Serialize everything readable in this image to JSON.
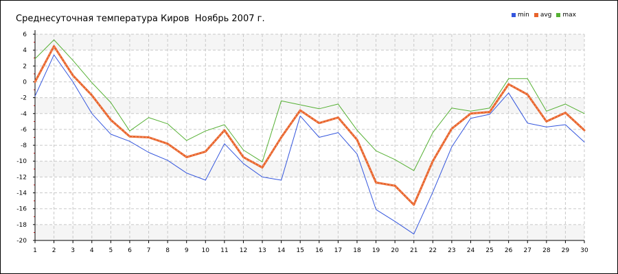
{
  "chart_data": {
    "type": "line",
    "title": "Среднесуточная температура Киров  Ноябрь 2007 г.",
    "xlabel": "",
    "ylabel": "",
    "xlim": [
      1,
      30
    ],
    "ylim": [
      -20,
      6
    ],
    "x": [
      1,
      2,
      3,
      4,
      5,
      6,
      7,
      8,
      9,
      10,
      11,
      12,
      13,
      14,
      15,
      16,
      17,
      18,
      19,
      20,
      21,
      22,
      23,
      24,
      25,
      26,
      27,
      28,
      29,
      30
    ],
    "x_ticks": [
      "1",
      "2",
      "3",
      "4",
      "5",
      "6",
      "7",
      "8",
      "9",
      "10",
      "11",
      "12",
      "13",
      "14",
      "15",
      "16",
      "17",
      "18",
      "19",
      "20",
      "21",
      "22",
      "23",
      "24",
      "25",
      "26",
      "27",
      "28",
      "29",
      "30"
    ],
    "y_ticks": [
      "6",
      "4",
      "2",
      "0",
      "-2",
      "-4",
      "-6",
      "-8",
      "-10",
      "-12",
      "-14",
      "-16",
      "-18",
      "-20"
    ],
    "grid": true,
    "legend_position": "top-right",
    "series": [
      {
        "name": "min",
        "color": "#3355dd",
        "values": [
          -1.8,
          3.4,
          0.0,
          -4.0,
          -6.6,
          -7.5,
          -8.9,
          -9.9,
          -11.5,
          -12.4,
          -7.8,
          -10.3,
          -12.0,
          -12.4,
          -4.3,
          -7.0,
          -6.4,
          -9.1,
          -16.1,
          -17.6,
          -19.2,
          -13.9,
          -8.2,
          -4.6,
          -4.1,
          -1.4,
          -5.2,
          -5.7,
          -5.4,
          -7.6
        ]
      },
      {
        "name": "avg",
        "color": "#e8632b",
        "values": [
          0.0,
          4.5,
          0.8,
          -1.7,
          -4.8,
          -6.9,
          -7.0,
          -7.8,
          -9.5,
          -8.8,
          -6.1,
          -9.5,
          -10.8,
          -7.0,
          -3.6,
          -5.2,
          -4.5,
          -7.3,
          -12.7,
          -13.1,
          -15.5,
          -10.0,
          -5.9,
          -4.0,
          -3.8,
          -0.3,
          -1.6,
          -5.0,
          -3.9,
          -6.1
        ]
      },
      {
        "name": "max",
        "color": "#55b033",
        "values": [
          2.9,
          5.3,
          2.7,
          -0.1,
          -2.6,
          -6.2,
          -4.5,
          -5.3,
          -7.4,
          -6.2,
          -5.4,
          -8.6,
          -10.1,
          -2.4,
          -2.9,
          -3.4,
          -2.8,
          -6.1,
          -8.7,
          -9.8,
          -11.2,
          -6.4,
          -3.3,
          -3.7,
          -3.3,
          0.4,
          0.4,
          -3.7,
          -2.8,
          -4.0
        ]
      }
    ]
  }
}
